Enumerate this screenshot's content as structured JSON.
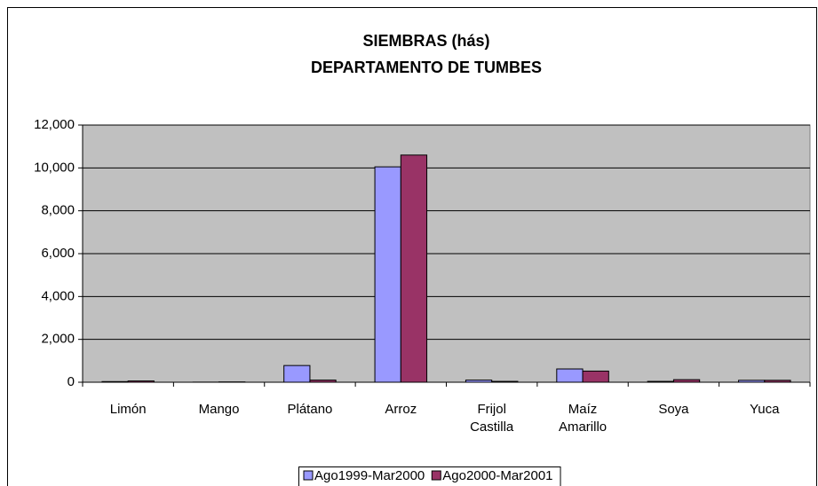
{
  "chart_data": {
    "type": "bar",
    "title": [
      "SIEMBRAS (hás)",
      "DEPARTAMENTO DE TUMBES"
    ],
    "categories": [
      "Limón",
      "Mango",
      "Plátano",
      "Arroz",
      "Frijol Castilla",
      "Maíz Amarillo",
      "Soya",
      "Yuca"
    ],
    "series": [
      {
        "name": "Ago1999-Mar2000",
        "color": "#9999ff",
        "values": [
          30,
          5,
          780,
          10050,
          100,
          620,
          40,
          90
        ]
      },
      {
        "name": "Ago2000-Mar2001",
        "color": "#993366",
        "values": [
          60,
          15,
          100,
          10600,
          40,
          520,
          120,
          90
        ]
      }
    ],
    "ylim": [
      0,
      12000
    ],
    "yticks": [
      0,
      {
        "value": 2000,
        "label": "2,000"
      },
      {
        "value": 4000,
        "label": "4,000"
      },
      {
        "value": 6000,
        "label": "6,000"
      },
      {
        "value": 8000,
        "label": "8,000"
      },
      {
        "value": 10000,
        "label": "10,000"
      },
      {
        "value": 12000,
        "label": "12,000"
      }
    ],
    "grid": true,
    "legend": "bottom"
  }
}
